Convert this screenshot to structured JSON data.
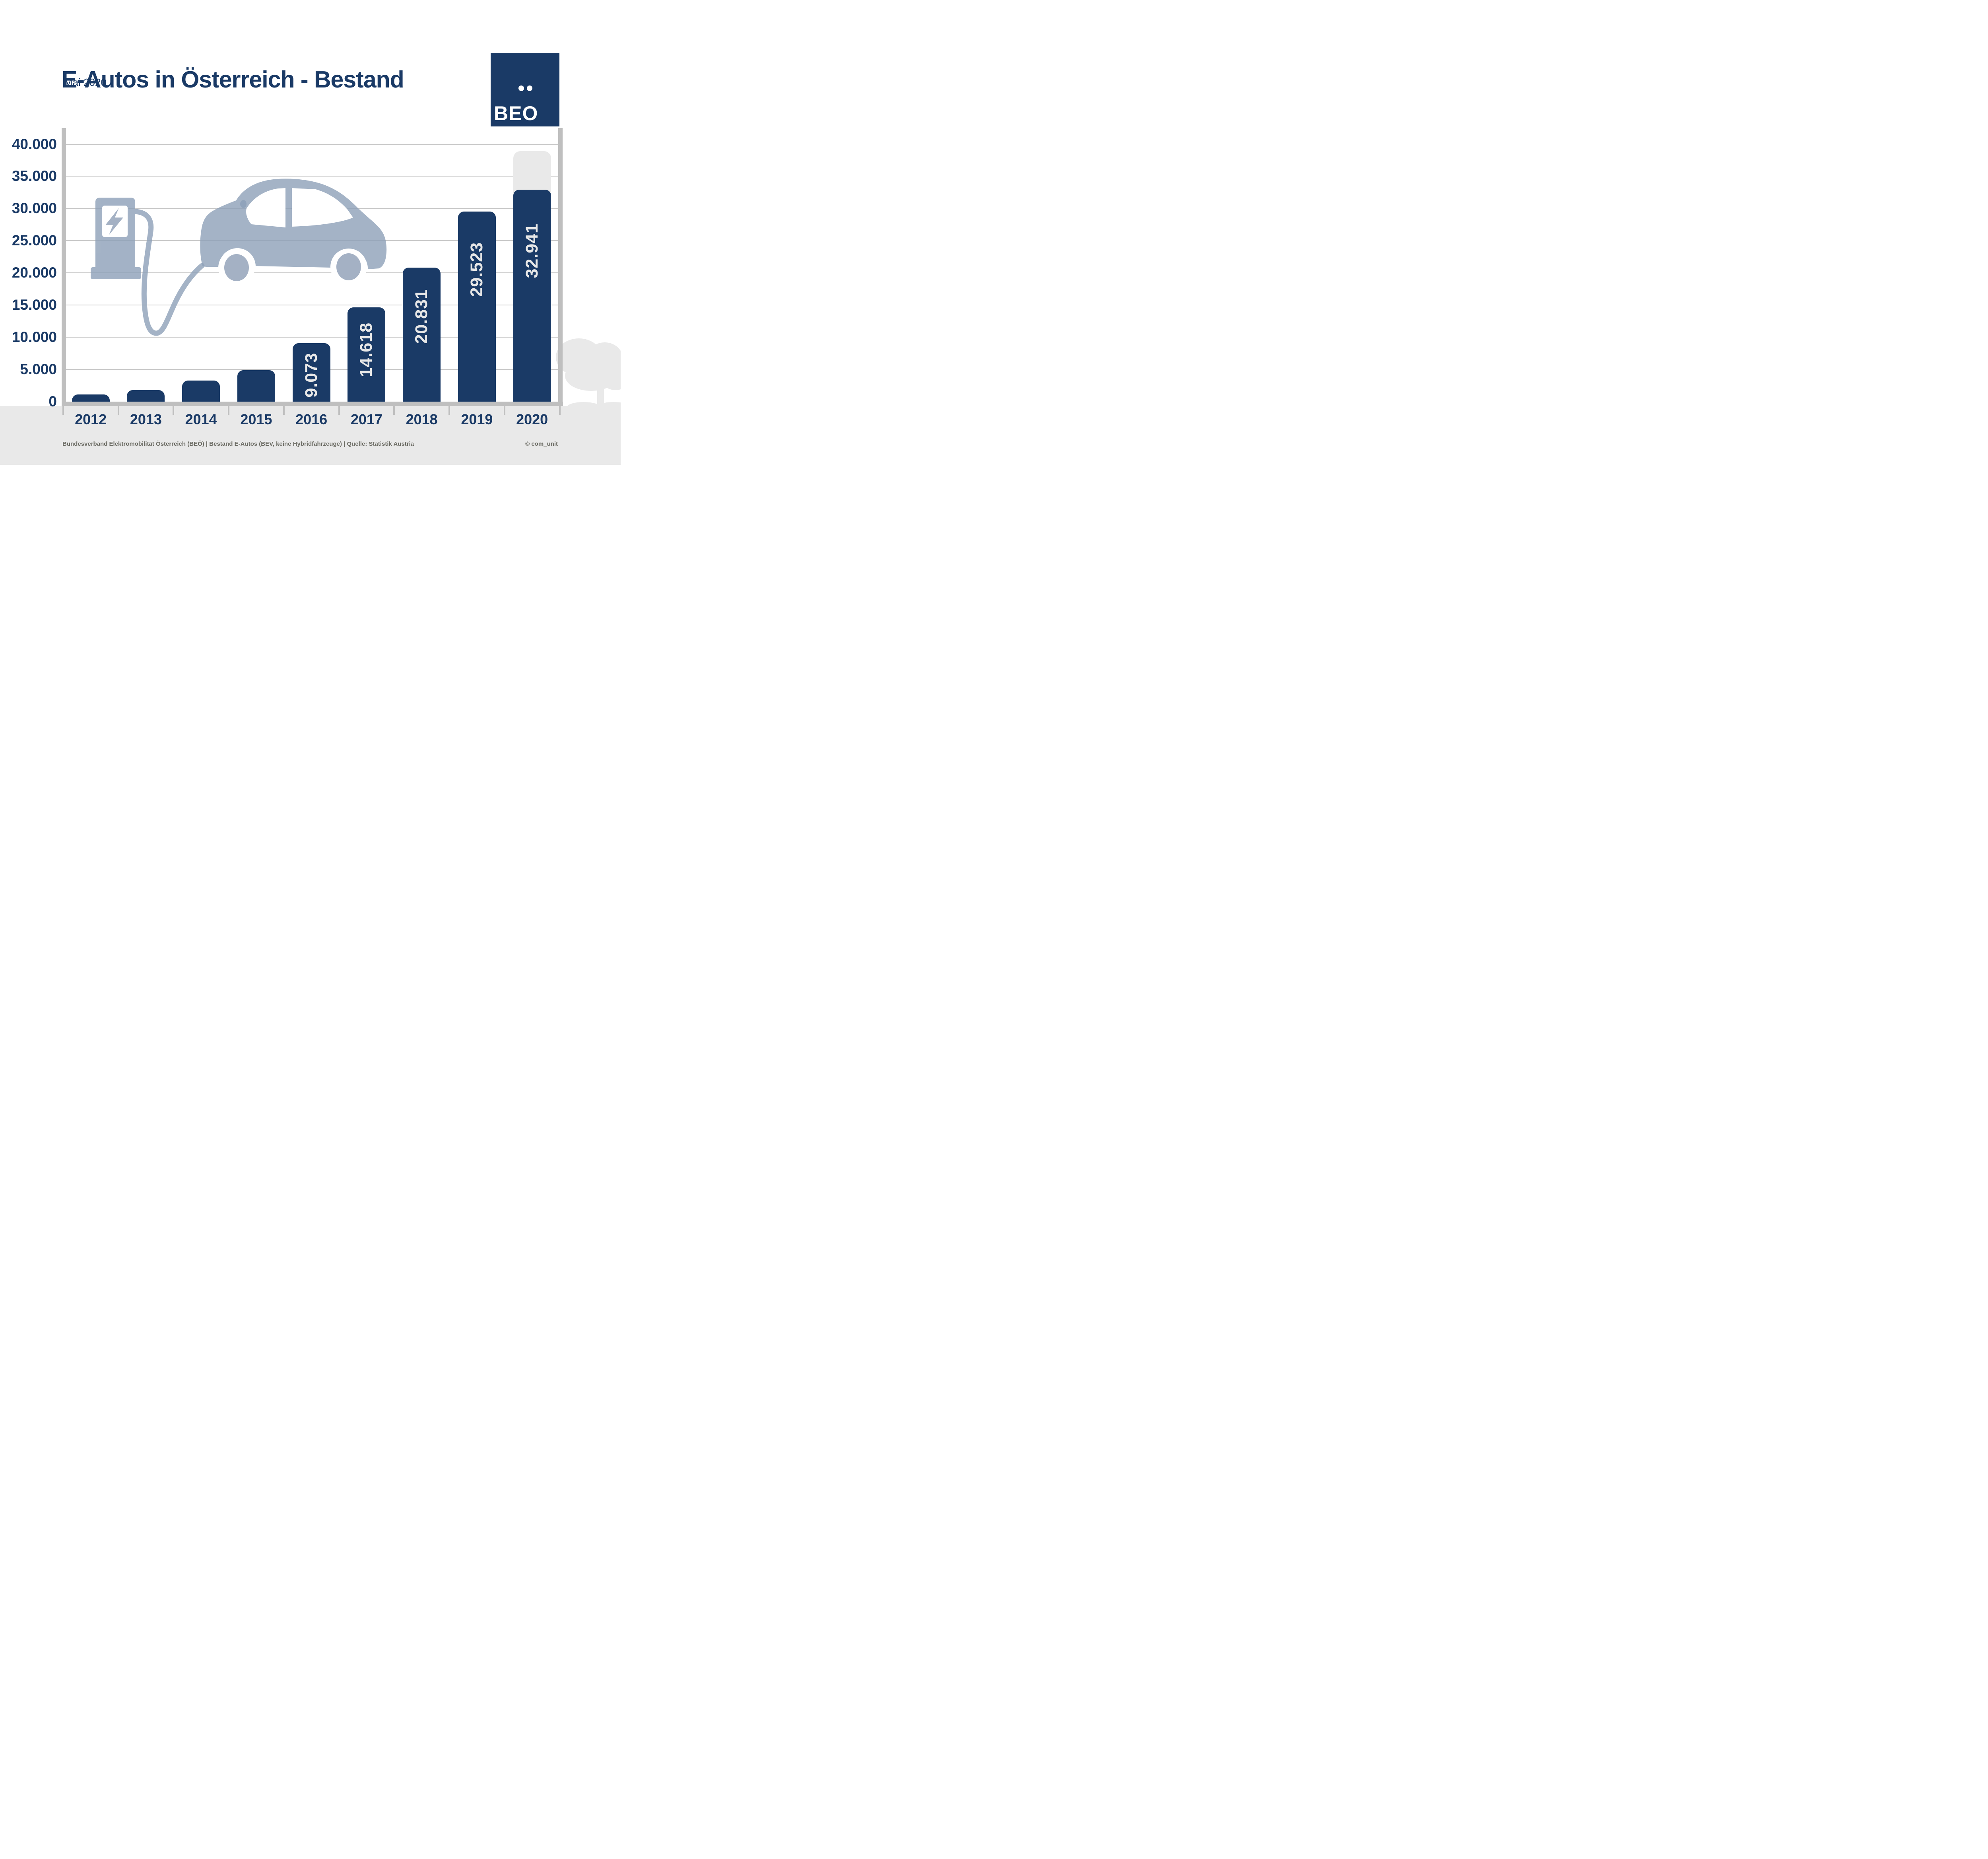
{
  "header": {
    "title": "E-Autos in Österreich - Bestand",
    "subtitle": "Mai 2020"
  },
  "logo": {
    "label": "BEO"
  },
  "chart_data": {
    "type": "bar",
    "title": "E-Autos in Österreich - Bestand",
    "subtitle": "Mai 2020",
    "categories": [
      "2012",
      "2013",
      "2014",
      "2015",
      "2016",
      "2017",
      "2018",
      "2019",
      "2020"
    ],
    "values": [
      1100,
      1800,
      3250,
      4900,
      9073,
      14618,
      20831,
      29523,
      32941
    ],
    "bar_labels": [
      "",
      "",
      "",
      "",
      "9.073",
      "14.618",
      "20.831",
      "29.523",
      "32.941"
    ],
    "unlabeled_bars_estimated_from_gridlines": true,
    "ghost_bar": {
      "category": "2020",
      "top_value_estimate": 38900,
      "note": "light gray rounded extension behind the 2020 bar, unlabeled"
    },
    "y_axis": {
      "range": [
        0,
        41000
      ],
      "ticks": [
        {
          "value": 40000,
          "label": "40.000"
        },
        {
          "value": 35000,
          "label": "35.000"
        },
        {
          "value": 30000,
          "label": "30.000"
        },
        {
          "value": 25000,
          "label": "25.000"
        },
        {
          "value": 20000,
          "label": "20.000"
        },
        {
          "value": 15000,
          "label": "15.000"
        },
        {
          "value": 10000,
          "label": "10.000"
        },
        {
          "value": 5000,
          "label": "5.000"
        },
        {
          "value": 0,
          "label": "0"
        }
      ]
    },
    "grid": true,
    "legend": false,
    "xlabel": "",
    "ylabel": ""
  },
  "decorations": [
    "charging-station-icon",
    "lightning-bolt-icon",
    "charging-cable-icon",
    "electric-car-icon",
    "tree-icon"
  ],
  "footer": {
    "source_line": "Bundesverband Elektromobilität Österreich (BEÖ) | Bestand E-Autos (BEV, keine Hybridfahrzeuge) | Quelle: Statistik Austria",
    "credit": "© com_unit"
  },
  "colors": {
    "navy": "#1a3a66",
    "axis": "#bfbfbf",
    "grid": "#c9c9c9",
    "band": "#e9e9e9",
    "vtext": "#e8e8e8",
    "foot": "#6b6b63",
    "illustration": "#8da0b8",
    "illustration_solid": "#a4b1c4"
  }
}
